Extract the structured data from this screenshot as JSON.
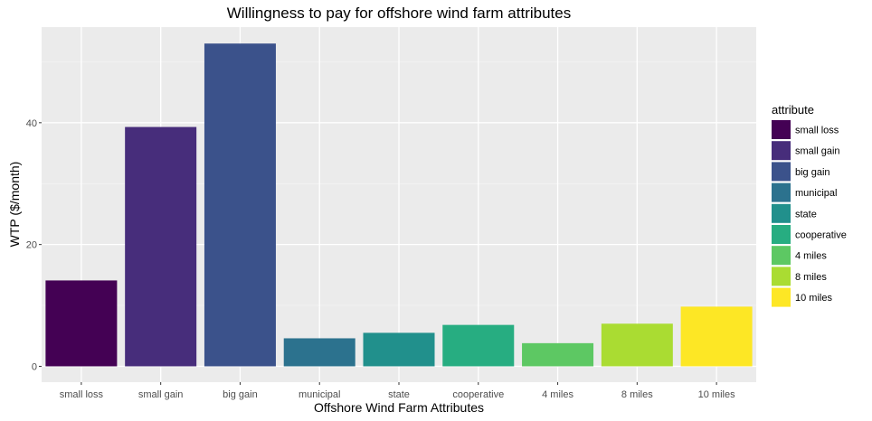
{
  "chart_data": {
    "type": "bar",
    "title": "Willingness to pay for offshore wind farm attributes",
    "xlabel": "Offshore Wind Farm Attributes",
    "ylabel": "WTP ($/month)",
    "categories": [
      "small loss",
      "small gain",
      "big gain",
      "municipal",
      "state",
      "cooperative",
      "4 miles",
      "8 miles",
      "10 miles"
    ],
    "values": [
      14.1,
      39.3,
      53.0,
      4.6,
      5.5,
      6.8,
      3.8,
      7.0,
      9.8
    ],
    "colors": [
      "#440154",
      "#472D7B",
      "#3B528B",
      "#2C728E",
      "#21908C",
      "#27AD81",
      "#5DC863",
      "#AADC32",
      "#FDE725"
    ],
    "yticks": [
      0,
      20,
      40
    ],
    "ylim": [
      -2.6,
      55.7
    ],
    "grid": true,
    "panel_background": "#ebebeb",
    "legend": {
      "title": "attribute",
      "position": "right",
      "entries": [
        "small loss",
        "small gain",
        "big gain",
        "municipal",
        "state",
        "cooperative",
        "4 miles",
        "8 miles",
        "10 miles"
      ]
    }
  }
}
